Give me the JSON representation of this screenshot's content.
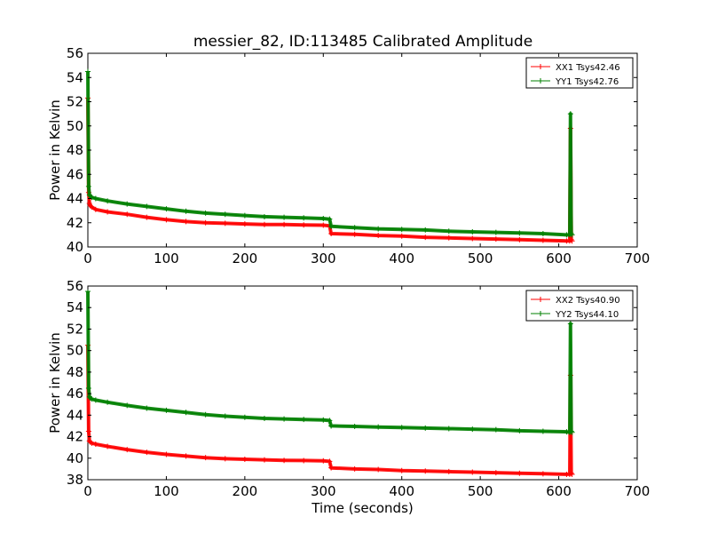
{
  "title": "messier_82, ID:113485 Calibrated Amplitude",
  "colors": {
    "xx": "#ff0000",
    "yy": "#008000"
  },
  "chart_data": [
    {
      "type": "line",
      "title": "messier_82, ID:113485 Calibrated Amplitude",
      "xlabel": "",
      "ylabel": "Power in Kelvin",
      "xlim": [
        0,
        700
      ],
      "ylim": [
        40,
        56
      ],
      "xticks": [
        0,
        100,
        200,
        300,
        400,
        500,
        600,
        700
      ],
      "yticks": [
        40,
        42,
        44,
        46,
        48,
        50,
        52,
        54,
        56
      ],
      "grid": false,
      "legend": "top-right",
      "series": [
        {
          "name": "XX1 Tsys42.46",
          "color": "#ff0000",
          "x": [
            0,
            1,
            2,
            3,
            5,
            10,
            25,
            50,
            75,
            100,
            125,
            150,
            175,
            200,
            225,
            250,
            275,
            300,
            308,
            310,
            340,
            370,
            400,
            430,
            460,
            490,
            520,
            550,
            580,
            610,
            614,
            615,
            616,
            617
          ],
          "y": [
            52.3,
            44.5,
            43.6,
            43.4,
            43.3,
            43.1,
            42.9,
            42.7,
            42.45,
            42.25,
            42.1,
            42.0,
            41.95,
            41.9,
            41.85,
            41.85,
            41.82,
            41.8,
            41.75,
            41.1,
            41.05,
            40.95,
            40.9,
            40.8,
            40.75,
            40.7,
            40.65,
            40.6,
            40.55,
            40.5,
            40.5,
            49.8,
            40.6,
            40.5
          ]
        },
        {
          "name": "YY1 Tsys42.76",
          "color": "#008000",
          "x": [
            0,
            1,
            2,
            3,
            5,
            10,
            25,
            50,
            75,
            100,
            125,
            150,
            175,
            200,
            225,
            250,
            275,
            300,
            308,
            310,
            340,
            370,
            400,
            430,
            460,
            490,
            520,
            550,
            580,
            610,
            614,
            615,
            616,
            617
          ],
          "y": [
            54.5,
            45.0,
            44.3,
            44.2,
            44.1,
            44.0,
            43.8,
            43.55,
            43.35,
            43.15,
            42.95,
            42.8,
            42.7,
            42.6,
            42.5,
            42.45,
            42.4,
            42.35,
            42.3,
            41.7,
            41.6,
            41.5,
            41.45,
            41.4,
            41.3,
            41.25,
            41.2,
            41.15,
            41.1,
            41.0,
            41.0,
            51.0,
            41.1,
            41.0
          ]
        }
      ]
    },
    {
      "type": "line",
      "title": "",
      "xlabel": "Time (seconds)",
      "ylabel": "Power in Kelvin",
      "xlim": [
        0,
        700
      ],
      "ylim": [
        38,
        56
      ],
      "xticks": [
        0,
        100,
        200,
        300,
        400,
        500,
        600,
        700
      ],
      "yticks": [
        38,
        40,
        42,
        44,
        46,
        48,
        50,
        52,
        54,
        56
      ],
      "grid": false,
      "legend": "top-right",
      "series": [
        {
          "name": "XX2 Tsys40.90",
          "color": "#ff0000",
          "x": [
            0,
            1,
            2,
            3,
            5,
            10,
            25,
            50,
            75,
            100,
            125,
            150,
            175,
            200,
            225,
            250,
            275,
            300,
            308,
            310,
            340,
            370,
            400,
            430,
            460,
            490,
            520,
            550,
            580,
            610,
            614,
            615,
            616,
            617
          ],
          "y": [
            50.5,
            42.5,
            41.6,
            41.5,
            41.4,
            41.3,
            41.1,
            40.8,
            40.55,
            40.35,
            40.2,
            40.05,
            39.95,
            39.9,
            39.85,
            39.8,
            39.78,
            39.75,
            39.7,
            39.1,
            39.0,
            38.95,
            38.85,
            38.8,
            38.75,
            38.7,
            38.65,
            38.6,
            38.55,
            38.5,
            38.5,
            47.7,
            38.6,
            38.5
          ]
        },
        {
          "name": "YY2 Tsys44.10",
          "color": "#008000",
          "x": [
            0,
            1,
            2,
            3,
            5,
            10,
            25,
            50,
            75,
            100,
            125,
            150,
            175,
            200,
            225,
            250,
            275,
            300,
            308,
            310,
            340,
            370,
            400,
            430,
            460,
            490,
            520,
            550,
            580,
            610,
            614,
            615,
            616,
            617
          ],
          "y": [
            55.5,
            46.5,
            45.7,
            45.6,
            45.5,
            45.4,
            45.2,
            44.9,
            44.65,
            44.45,
            44.25,
            44.05,
            43.9,
            43.8,
            43.7,
            43.65,
            43.6,
            43.55,
            43.5,
            43.0,
            42.95,
            42.9,
            42.85,
            42.8,
            42.75,
            42.7,
            42.65,
            42.55,
            42.5,
            42.45,
            42.4,
            52.5,
            42.5,
            42.4
          ]
        }
      ]
    }
  ]
}
